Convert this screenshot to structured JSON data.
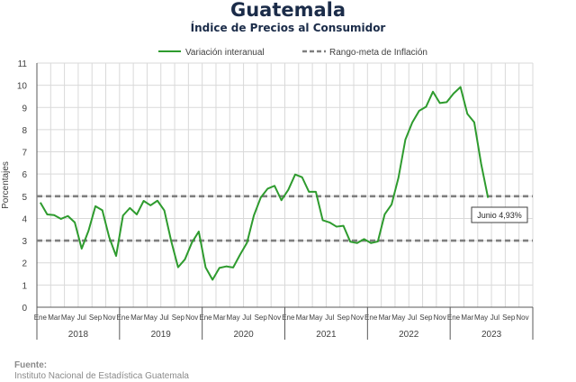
{
  "header": {
    "title": "Guatemala",
    "subtitle": "Índice de Precios al Consumidor"
  },
  "source": {
    "label": "Fuente:",
    "text": "Instituto Nacional de Estadística Guatemala"
  },
  "colors": {
    "series": "#2e9b2e",
    "target": "#7f7f7f",
    "grid": "#d9d9d9",
    "axis": "#595959",
    "title": "#1b2c49"
  },
  "chart_data": {
    "type": "line",
    "title": "Guatemala",
    "subtitle": "Índice de Precios al Consumidor",
    "ylabel": "Porcentajes",
    "ylim": [
      0,
      11
    ],
    "yticks": [
      0,
      1,
      2,
      3,
      4,
      5,
      6,
      7,
      8,
      9,
      10,
      11
    ],
    "grid": true,
    "legend_position": "top",
    "x_month_labels": [
      "Ene",
      "Mar",
      "May",
      "Jul",
      "Sep",
      "Nov"
    ],
    "years": [
      "2018",
      "2019",
      "2020",
      "2021",
      "2022",
      "2023"
    ],
    "series": [
      {
        "name": "Variación interanual",
        "style": "solid",
        "start": "2018-01",
        "values": [
          4.72,
          4.18,
          4.15,
          3.98,
          4.11,
          3.82,
          2.64,
          3.45,
          4.55,
          4.37,
          3.15,
          2.31,
          4.13,
          4.47,
          4.18,
          4.79,
          4.59,
          4.8,
          4.36,
          2.98,
          1.8,
          2.16,
          2.91,
          3.41,
          1.79,
          1.24,
          1.77,
          1.84,
          1.79,
          2.37,
          2.9,
          4.13,
          4.94,
          5.34,
          5.47,
          4.82,
          5.29,
          5.98,
          5.86,
          5.2,
          5.2,
          3.92,
          3.82,
          3.63,
          3.67,
          2.95,
          2.89,
          3.07,
          2.89,
          2.96,
          4.19,
          4.63,
          5.84,
          7.55,
          8.32,
          8.85,
          9.03,
          9.71,
          9.2,
          9.24,
          9.63,
          9.92,
          8.71,
          8.33,
          6.46,
          4.93
        ]
      },
      {
        "name": "Rango-meta de Inflación",
        "style": "dashed",
        "values": [
          3,
          5
        ]
      }
    ],
    "annotations": [
      {
        "text": "Junio 4,93%",
        "x": "2023-06",
        "y": 4.93
      }
    ]
  }
}
